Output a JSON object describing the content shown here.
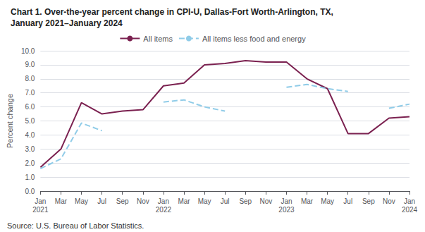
{
  "chart_data": {
    "type": "line",
    "title": "Chart 1. Over-the-year percent change in CPI-U, Dallas-Fort Worth-Arlington, TX,",
    "subtitle": "January 2021–January 2024",
    "ylabel": "Percent change",
    "annotations": [
      "Source: U.S. Bureau of Labor Statistics."
    ],
    "categories": [
      "Jan\n2021",
      "Mar",
      "May",
      "Jul",
      "Sep",
      "Nov",
      "Jan\n2022",
      "Mar",
      "May",
      "Jul",
      "Sep",
      "Nov",
      "Jan\n2023",
      "Mar",
      "May",
      "Jul",
      "Sep",
      "Nov",
      "Jan\n2024"
    ],
    "series": [
      {
        "name": "All items",
        "color": "#7b2150",
        "line_style": "solid",
        "values": [
          1.7,
          3.0,
          6.3,
          5.5,
          5.7,
          5.8,
          7.5,
          7.7,
          9.0,
          9.1,
          9.3,
          9.2,
          9.2,
          8.0,
          7.3,
          4.1,
          4.1,
          5.2,
          5.3
        ]
      },
      {
        "name": "All items less food and energy",
        "color": "#90cce8",
        "line_style": "dashed",
        "values": [
          1.6,
          2.3,
          4.85,
          4.3,
          null,
          null,
          6.35,
          6.5,
          6.0,
          5.7,
          null,
          null,
          7.4,
          7.6,
          7.3,
          7.1,
          null,
          5.9,
          6.2
        ]
      }
    ],
    "ylim": [
      0.0,
      10.0
    ],
    "yticks": [
      {
        "value": 0,
        "label": "0.0"
      },
      {
        "value": 1,
        "label": "1.0"
      },
      {
        "value": 2,
        "label": "2.0"
      },
      {
        "value": 3,
        "label": "3.0"
      },
      {
        "value": 4,
        "label": "4.0"
      },
      {
        "value": 5,
        "label": "5.0"
      },
      {
        "value": 6,
        "label": "6.0"
      },
      {
        "value": 7,
        "label": "7.0"
      },
      {
        "value": 8,
        "label": "8.0"
      },
      {
        "value": 9,
        "label": "9.0"
      },
      {
        "value": 10,
        "label": "10.0"
      }
    ],
    "grid": true,
    "legend": "top"
  }
}
